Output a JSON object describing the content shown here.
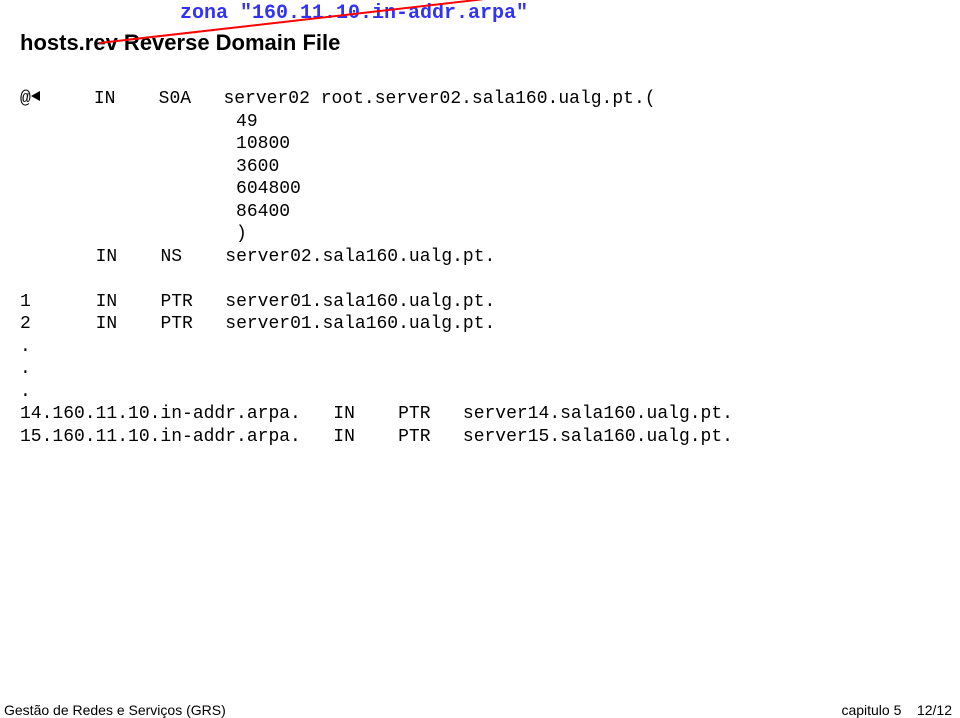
{
  "zone_title": "zona \"160.11.10.in-addr.arpa\"",
  "subtitle": "hosts.rev  Reverse Domain File",
  "soa": {
    "at": "@",
    "class1": "IN",
    "type1": "S0A",
    "mname": "server02",
    "rname": "root.server02.sala160.ualg.pt.(",
    "serial": "49",
    "refresh": "10800",
    "retry": "3600",
    "expire": "604800",
    "minimum": "86400",
    "close": ")",
    "ns_class": "IN",
    "ns_type": "NS",
    "ns_value": "server02.sala160.ualg.pt."
  },
  "ptr": {
    "r1_name": "1",
    "r1_class": "IN",
    "r1_type": "PTR",
    "r1_val": "server01.sala160.ualg.pt.",
    "r2_name": "2",
    "r2_class": "IN",
    "r2_type": "PTR",
    "r2_val": "server01.sala160.ualg.pt.",
    "r3_name": "14.160.11.10.in-addr.arpa.",
    "r3_class": "IN",
    "r3_type": "PTR",
    "r3_val": "server14.sala160.ualg.pt.",
    "r4_name": "15.160.11.10.in-addr.arpa.",
    "r4_class": "IN",
    "r4_type": "PTR",
    "r4_val": "server15.sala160.ualg.pt."
  },
  "footer": {
    "left": "Gestão de Redes e Serviços (GRS)",
    "right_label": "capitulo 5",
    "right_page": "12/12"
  }
}
